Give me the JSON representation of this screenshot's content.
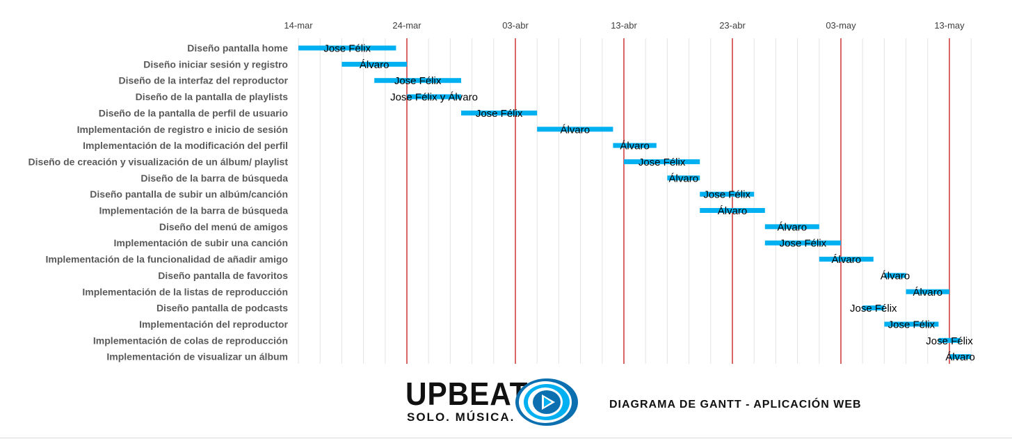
{
  "chart_data": {
    "type": "gantt",
    "x_start": "2021-03-14",
    "x_end": "2021-05-15",
    "x_ticks": [
      {
        "date": "2021-03-14",
        "label": "14-mar"
      },
      {
        "date": "2021-03-24",
        "label": "24-mar"
      },
      {
        "date": "2021-04-03",
        "label": "03-abr"
      },
      {
        "date": "2021-04-13",
        "label": "13-abr"
      },
      {
        "date": "2021-04-23",
        "label": "23-abr"
      },
      {
        "date": "2021-05-03",
        "label": "03-may"
      },
      {
        "date": "2021-05-13",
        "label": "13-may"
      }
    ],
    "gridlines": "every 2 days (light gray), major every 10 days (red)",
    "bar_color": "#00B0F0",
    "major_line_color": "#C00000",
    "tasks": [
      {
        "name": "Diseño pantalla home",
        "start": "2021-03-14",
        "end": "2021-03-23",
        "assignee": "Jose Félix"
      },
      {
        "name": "Diseño iniciar sesión y registro",
        "start": "2021-03-18",
        "end": "2021-03-24",
        "assignee": "Álvaro"
      },
      {
        "name": "Diseño de la interfaz del reproductor",
        "start": "2021-03-21",
        "end": "2021-03-29",
        "assignee": "Jose Félix"
      },
      {
        "name": "Diseño de la pantalla de playlists",
        "start": "2021-03-24",
        "end": "2021-03-29",
        "assignee": "Jose Félix y Álvaro"
      },
      {
        "name": "Diseño de la pantalla de perfil de usuario",
        "start": "2021-03-29",
        "end": "2021-04-05",
        "assignee": "Jose Félix"
      },
      {
        "name": "Implementación de registro e inicio de sesión",
        "start": "2021-04-05",
        "end": "2021-04-12",
        "assignee": "Álvaro"
      },
      {
        "name": "Implementación de la modificación del perfil",
        "start": "2021-04-12",
        "end": "2021-04-16",
        "assignee": "Álvaro"
      },
      {
        "name": "Diseño de creación y visualización de un álbum/ playlist",
        "start": "2021-04-13",
        "end": "2021-04-20",
        "assignee": "Jose Félix"
      },
      {
        "name": "Diseño de la barra de búsqueda",
        "start": "2021-04-17",
        "end": "2021-04-20",
        "assignee": "Álvaro"
      },
      {
        "name": "Diseño pantalla de subir un albúm/canción",
        "start": "2021-04-20",
        "end": "2021-04-25",
        "assignee": "Jose Félix"
      },
      {
        "name": "Implementación de la barra de  búsqueda",
        "start": "2021-04-20",
        "end": "2021-04-26",
        "assignee": "Álvaro"
      },
      {
        "name": "Diseño del menú de amigos",
        "start": "2021-04-26",
        "end": "2021-05-01",
        "assignee": "Álvaro"
      },
      {
        "name": "Implementación de subir una canción",
        "start": "2021-04-26",
        "end": "2021-05-03",
        "assignee": "Jose Félix"
      },
      {
        "name": "Implementación de la funcionalidad de añadir amigo",
        "start": "2021-05-01",
        "end": "2021-05-06",
        "assignee": "Álvaro"
      },
      {
        "name": "Diseño pantalla de favoritos",
        "start": "2021-05-07",
        "end": "2021-05-09",
        "assignee": "Álvaro"
      },
      {
        "name": "Implementación de la listas de reproducción",
        "start": "2021-05-09",
        "end": "2021-05-13",
        "assignee": "Álvaro"
      },
      {
        "name": "Diseño pantalla de podcasts",
        "start": "2021-05-05",
        "end": "2021-05-07",
        "assignee": "Jose Félix"
      },
      {
        "name": "Implementación del reproductor",
        "start": "2021-05-07",
        "end": "2021-05-12",
        "assignee": "Jose Félix"
      },
      {
        "name": "Implementación de colas de reproducción",
        "start": "2021-05-12",
        "end": "2021-05-14",
        "assignee": "Jose Félix"
      },
      {
        "name": "Implementación de visualizar un álbum",
        "start": "2021-05-13",
        "end": "2021-05-15",
        "assignee": "Álvaro"
      }
    ]
  },
  "logo": {
    "wordmark": "UPBEAT",
    "tagline": "SOLO. MÚSICA.",
    "icon": "play-circle-icon",
    "colors": {
      "primary": "#0B6FB0",
      "secondary": "#00B0F0",
      "dark": "#111111"
    }
  },
  "subtitle": "DIAGRAMA DE GANTT - APLICACIÓN WEB"
}
